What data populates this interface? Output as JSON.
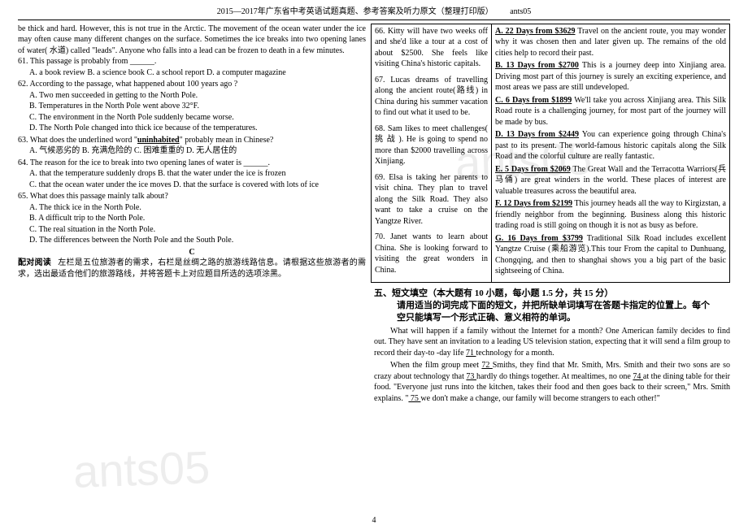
{
  "header": {
    "title": "2015—2017年广东省中考英语试题真题、参考答案及听力原文（整理打印版）",
    "code": "ants05"
  },
  "watermark": "ants05",
  "leftPassage": "be thick and hard. However, this is not true in the Arctic. The movement of the ocean water under the ice may often cause many different changes on the surface. Sometimes the ice breaks into two opening lanes of water( 水道) called \"leads\". Anyone who falls into a lead can be frozen to death in a few minutes.",
  "q61": {
    "stem": "61. This passage is probably from ______.",
    "opts": "A. a book review      B. a science book     C. a school report    D. a computer magazine"
  },
  "q62": {
    "stem": "62. According to the passage, what happened about 100 years ago ?",
    "a": "A. Two men succeeded in getting to the North Pole.",
    "b": "B. Temperatures in the North Pole went above 32°F.",
    "c": "C. The environment in the North Pole suddenly became worse.",
    "d": "D. The North Pole changed into thick ice because of the temperatures."
  },
  "q63": {
    "stem_pre": "63. What does the underlined word \"",
    "stem_word": "uninhabited",
    "stem_post": "\" probably mean in Chinese?",
    "opts": "A. 气候恶劣的      B. 充满危险的      C. 困难重重的      D. 无人居住的"
  },
  "q64": {
    "stem": "64. The reason for the ice to break into two opening lanes of water is ______.",
    "row1": "A. that the temperature suddenly drops    B. that the water under the ice is frozen",
    "row2": "C. that the ocean water under the ice moves   D. that the surface is covered with lots of ice"
  },
  "q65": {
    "stem": "65. What does this passage mainly talk about?",
    "a": "A. The thick ice in the North Pole.",
    "b": "B. A difficult trip to the North Pole.",
    "c": "C. The real situation in the North Pole.",
    "d": "D. The differences between the North Pole and the South Pole."
  },
  "cTitle": "C",
  "matchIntro": "配对阅读   左栏是五位旅游者的需求，右栏是丝绸之路的旅游线路信息。请根据这些旅游者的需求，选出最适合他们的旅游路线，并将答题卡上对应题目所选的选项涂黑。",
  "mid": {
    "i66": "66.  Kitty will have two weeks off and she'd like a tour at a cost of about $2500. She feels like visiting China's historic capitals.",
    "i67": "67. Lucas dreams of travelling along the ancient route(路线) in China during his summer vacation to find out what it used to be.",
    "i68": "68.  Sam likes to meet challenges( 挑 战 ). He is going to spend no more than $2000 travelling across Xinjiang.",
    "i69": "69. Elsa is taking her parents to visit china. They plan to travel along the Silk Road. They also want to take a cruise on the Yangtze River.",
    "i70": "70. Janet wants to learn about China. She is looking forward to visiting the great wonders in China."
  },
  "tours": {
    "a": {
      "h": "A. 22 Days from $3629",
      "t": " Travel on the ancient route, you may wonder why it was chosen then and later given up. The remains of the old cities help to record their past."
    },
    "b": {
      "h": "B. 13 Days from $2700",
      "t": " This is a journey deep into Xinjiang area. Driving most part of this journey is surely an exciting experience, and most areas we pass are still undeveloped."
    },
    "c": {
      "h": "C. 6 Days from $1899",
      "t": " We'll take you across Xinjiang area. This Silk Road route is a challenging journey, for most part of the journey will be made by bus."
    },
    "d": {
      "h": "D. 13 Days from $2449",
      "t": " You can experience going through China's past to its present. The world-famous historic capitals along the Silk Road and the colorful culture are really fantastic."
    },
    "e": {
      "h": "E. 5 Days from $2069",
      "t": " The Great Wall and the Terracotta Warriors(兵马俑) are great winders in the world. These places of interest are valuable treasures across the beautiful area."
    },
    "f": {
      "h": "F. 12 Days from $2199",
      "t": " This journey heads all the way to Kirgizstan, a friendly neighbor from the beginning. Business along this historic trading road is still going on though it is not as busy as before."
    },
    "g": {
      "h": "G. 16 Days from $3799",
      "t": " Traditional Silk Road includes excellent Yangtze Cruise (乘船游览).This tour From the capital to Dunhuang, Chongqing, and then to shanghai shows you a big part of the basic sightseeing of China."
    }
  },
  "section5": {
    "title": "五、短文填空（本大题有 10 小题，每小题 1.5 分，共 15 分）",
    "sub1": "请用适当的词完成下面的短文，并把所缺单词填写在答题卡指定的位置上。每个",
    "sub2": "空只能填写一个形式正确、意义相符的单词。",
    "p1a": "What will happen if a family without the Internet for a month? One American family decides to find out. They have sent an invitation to a leading US television station, expecting that it will send a film group to record their day-to -day life ",
    "p1b": "   71   ",
    "p1c": " technology for a month.",
    "p2a": "When the film group meet ",
    "p2b": "   72   ",
    "p2c": " Smiths, they find that Mr. Smith, Mrs. Smith and their two sons are so crazy about technology that ",
    "p2d": "   73   ",
    "p2e": " hardly do things together. At mealtimes, no one ",
    "p2f": "   74   ",
    "p2g": " at the dining table for their food. \"Everyone just runs into the kitchen, takes their food and then goes back to their screen,\" Mrs. Smith explains. \"",
    "p2h": "   75  ",
    "p2i": " we don't make a change, our family will become strangers to each other!\""
  },
  "pageNum": "4"
}
